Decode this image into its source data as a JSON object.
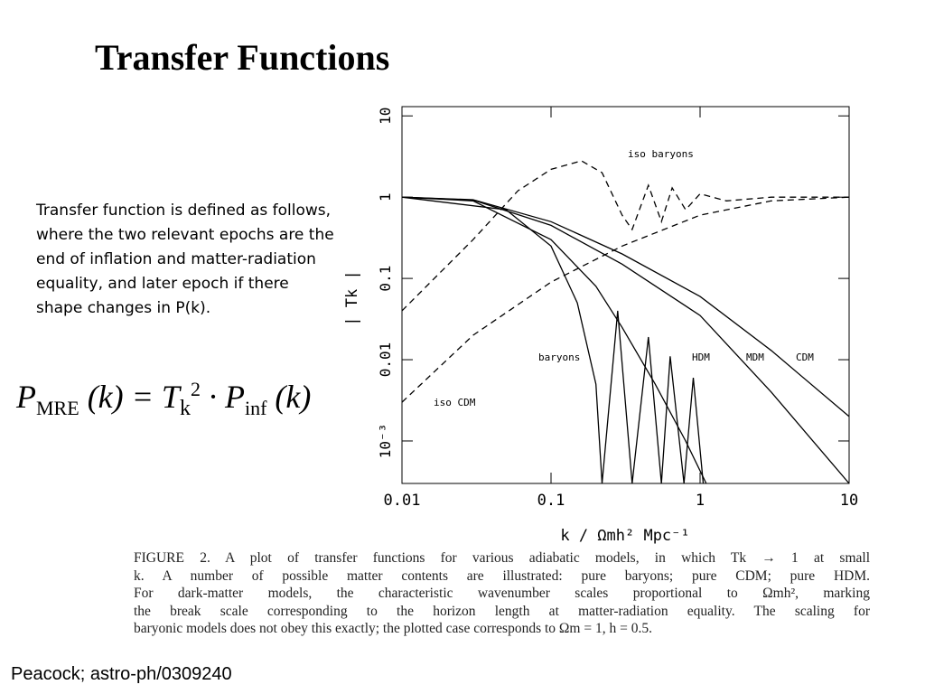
{
  "header": {
    "title": "Transfer Functions"
  },
  "body": {
    "text": "Transfer function is defined as follows, where the two relevant epochs are the end of inflation and matter-radiation equality, and later epoch if there shape changes in P(k)."
  },
  "equation": {
    "parts": [
      "P",
      "MRE",
      "(k) = T",
      "k",
      "2",
      "· P",
      "inf",
      "(k)"
    ]
  },
  "chart_data": {
    "type": "line",
    "log_x": true,
    "log_y": true,
    "y_label": "| Tk |",
    "x_label": "k / Ωmh² Mpc⁻¹",
    "xlim": [
      0.01,
      10
    ],
    "ylim": [
      0.0003,
      13
    ],
    "xticks": [
      0.01,
      0.1,
      1,
      10
    ],
    "yticks": [
      {
        "value": 0.001,
        "label": "10⁻³"
      },
      0.01,
      0.1,
      1,
      10
    ],
    "series": [
      {
        "name": "iso baryons",
        "color": "#000000",
        "dashed": true,
        "x": [
          0.01,
          0.03,
          0.06,
          0.1,
          0.16,
          0.22,
          0.3,
          0.35,
          0.45,
          0.55,
          0.65,
          0.8,
          1,
          1.5,
          3,
          10
        ],
        "values": [
          0.04,
          0.3,
          1.2,
          2.2,
          2.8,
          2,
          0.6,
          0.4,
          1.4,
          0.5,
          1.3,
          0.7,
          1.1,
          0.9,
          1,
          1
        ]
      },
      {
        "name": "baryons",
        "color": "#000000",
        "dashed": false,
        "x": [
          0.01,
          0.05,
          0.1,
          0.15,
          0.2,
          0.22,
          0.28,
          0.35,
          0.45,
          0.55,
          0.63,
          0.78,
          0.9,
          1.05
        ],
        "values": [
          1,
          0.7,
          0.25,
          0.05,
          0.005,
          0.0003,
          0.04,
          0.0003,
          0.019,
          0.0003,
          0.011,
          0.0003,
          0.006,
          0.0003
        ]
      },
      {
        "name": "HDM",
        "color": "#000000",
        "dashed": false,
        "x": [
          0.01,
          0.03,
          0.1,
          0.2,
          0.3,
          0.5,
          0.8,
          1.1
        ],
        "values": [
          1,
          0.9,
          0.3,
          0.08,
          0.025,
          0.005,
          0.001,
          0.0003
        ]
      },
      {
        "name": "MDM",
        "color": "#000000",
        "dashed": false,
        "x": [
          0.01,
          0.03,
          0.1,
          0.3,
          1,
          3,
          10
        ],
        "values": [
          1,
          0.92,
          0.45,
          0.15,
          0.035,
          0.004,
          0.0003
        ]
      },
      {
        "name": "CDM",
        "color": "#000000",
        "dashed": false,
        "x": [
          0.01,
          0.03,
          0.1,
          0.3,
          1,
          3,
          10
        ],
        "values": [
          1,
          0.93,
          0.5,
          0.2,
          0.06,
          0.013,
          0.002
        ]
      },
      {
        "name": "iso CDM",
        "color": "#000000",
        "dashed": true,
        "x": [
          0.01,
          0.03,
          0.1,
          0.3,
          1,
          3,
          10
        ],
        "values": [
          0.003,
          0.02,
          0.09,
          0.25,
          0.6,
          0.9,
          1
        ]
      }
    ]
  },
  "caption": {
    "lines": [
      "FIGURE 2. A plot of transfer functions for various adiabatic models, in which Tk → 1 at small",
      "k. A number of possible matter contents are illustrated: pure baryons; pure CDM; pure HDM.",
      "For dark-matter models, the characteristic wavenumber scales proportional to Ωmh², marking",
      "the break scale corresponding to the horizon length at matter-radiation equality. The scaling for",
      "baryonic models does not obey this exactly; the plotted case corresponds to Ωm = 1, h = 0.5."
    ]
  },
  "footer": {
    "citation": "Peacock; astro-ph/0309240"
  }
}
